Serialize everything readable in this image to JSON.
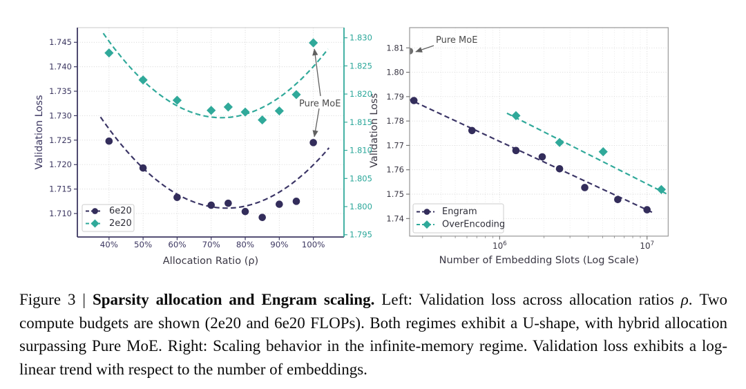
{
  "caption": {
    "prefix": "Figure 3 | ",
    "bold": "Sparsity allocation and Engram scaling.",
    "part1": " Left: Validation loss across allocation ratios ",
    "rho": "ρ",
    "part2": ". Two compute budgets are shown (2e20 and 6e20 FLOPs). Both regimes exhibit a U-shape, with hybrid allocation surpassing Pure MoE. Right: Scaling behavior in the infinite-memory regime. Validation loss exhibits a log-linear trend with respect to the number of embeddings."
  },
  "colors": {
    "navy": "#332d5b",
    "navy_fit": "#3b3566",
    "teal": "#30a99a",
    "teal_text": "#2ba79a",
    "navy_text": "#3b3660",
    "axis_text": "#3a3744",
    "grid": "#d9d9d9",
    "grid_minor": "#ebebeb",
    "spine_gray": "#9f9f9f",
    "spine_top": "#c9c9c9",
    "legend_border": "#cccccc",
    "legend_text": "#2e2e38",
    "annotation": "#4a4a4a",
    "arrow": "#606060",
    "pure_moe_point": "#6f6f6f",
    "background": "#ffffff"
  },
  "chart_data": [
    {
      "id": "sparsity-allocation",
      "type": "scatter",
      "xlabel": "Allocation Ratio (ρ)",
      "ylabel": "Validation Loss",
      "x_tick_values": [
        40,
        50,
        60,
        70,
        80,
        90,
        100
      ],
      "x_tick_suffix": "%",
      "xlim": [
        30.7,
        109.0
      ],
      "ylim": [
        1.7052,
        1.748
      ],
      "ylim_right": [
        1.7946,
        1.8318
      ],
      "yticks": [
        1.745,
        1.74,
        1.735,
        1.73,
        1.725,
        1.72,
        1.715,
        1.71
      ],
      "yticks_right": [
        1.83,
        1.825,
        1.82,
        1.815,
        1.81,
        1.805,
        1.8,
        1.795
      ],
      "ytick_decimals": 3,
      "grid": true,
      "legend_position": "lower left",
      "annotation": "Pure MoE",
      "series": [
        {
          "name": "6e20",
          "axis": "left",
          "marker": "circle",
          "color": "#332d5b",
          "x": [
            40,
            50,
            60,
            70,
            75,
            80,
            85,
            90,
            95,
            100
          ],
          "y": [
            1.7248,
            1.7193,
            1.7133,
            1.7117,
            1.7121,
            1.7104,
            1.7092,
            1.7119,
            1.7125,
            1.7245
          ]
        },
        {
          "name": "2e20",
          "axis": "right",
          "marker": "diamond",
          "color": "#30a99a",
          "x": [
            40,
            50,
            60,
            70,
            75,
            80,
            85,
            90,
            95,
            100
          ],
          "y": [
            1.8273,
            1.8225,
            1.8189,
            1.8171,
            1.8177,
            1.8168,
            1.8154,
            1.817,
            1.8199,
            1.8291
          ]
        }
      ],
      "fits": [
        {
          "series": "6e20",
          "axis": "left",
          "shape": "parabola",
          "color": "#3b3566",
          "vertex_x": 74.5,
          "vertex_y": 1.7111,
          "a": 1.36e-05,
          "x_range": [
            37.5,
            105.3
          ]
        },
        {
          "series": "2e20",
          "axis": "right",
          "shape": "parabola",
          "color": "#30a99a",
          "vertex_x": 73.0,
          "vertex_y": 1.8158,
          "a": 1.246e-05,
          "x_range": [
            38.3,
            105.3
          ]
        }
      ]
    },
    {
      "id": "engram-scaling",
      "type": "scatter",
      "xscale": "log",
      "xlabel": "Number of Embedding Slots (Log Scale)",
      "ylabel": "Validation Loss",
      "xlim": [
        245000,
        13920000
      ],
      "ylim": [
        1.7328,
        1.8183
      ],
      "x_ticks": [
        {
          "value": 1000000,
          "exp": 6
        },
        {
          "value": 10000000,
          "exp": 7
        }
      ],
      "yticks": [
        1.81,
        1.8,
        1.79,
        1.78,
        1.77,
        1.76,
        1.75,
        1.74
      ],
      "ytick_decimals": 2,
      "grid": true,
      "legend_position": "lower left",
      "annotation": "Pure MoE",
      "pure_moe_point": {
        "x": 246000,
        "y": 1.8087
      },
      "series": [
        {
          "name": "Engram",
          "marker": "circle",
          "color": "#332d5b",
          "x": [
            262000,
            649000,
            1290000,
            1945000,
            2550000,
            3780000,
            6330000,
            10000000
          ],
          "y": [
            1.7884,
            1.7761,
            1.7679,
            1.7653,
            1.7604,
            1.7527,
            1.7478,
            1.7436
          ]
        },
        {
          "name": "OverEncoding",
          "marker": "diamond",
          "color": "#30a99a",
          "x": [
            1290000,
            2550000,
            5040000,
            12500000
          ],
          "y": [
            1.7822,
            1.7712,
            1.7674,
            1.7519
          ]
        }
      ],
      "fits": [
        {
          "series": "Engram",
          "shape": "line",
          "color": "#3b3566",
          "x": [
            235000,
            10800000
          ],
          "y": [
            1.7893,
            1.7426
          ]
        },
        {
          "series": "OverEncoding",
          "shape": "line",
          "color": "#30a99a",
          "x": [
            1120000,
            13500000
          ],
          "y": [
            1.7832,
            1.7502
          ]
        }
      ]
    }
  ]
}
